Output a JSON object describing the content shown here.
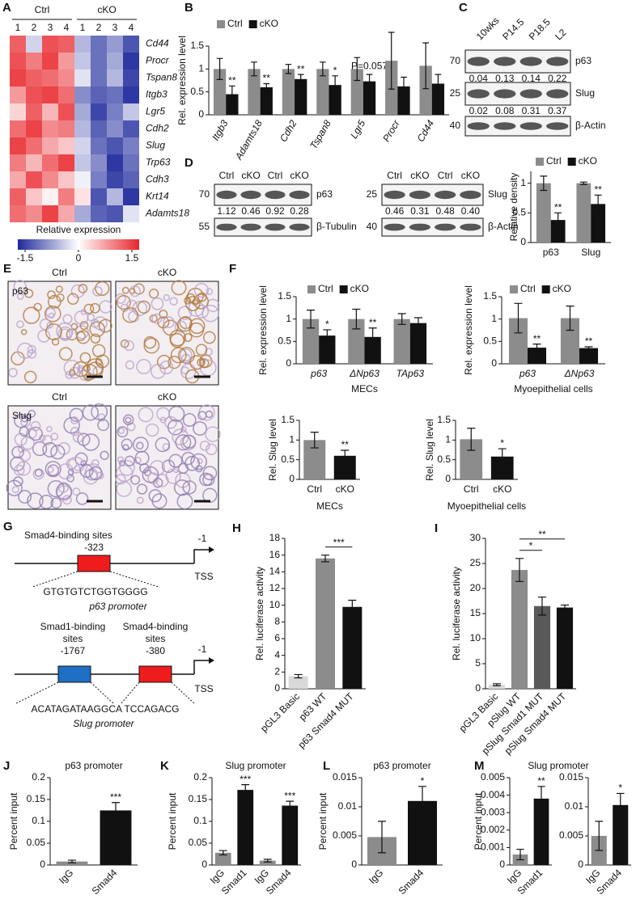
{
  "chart_data": [
    {
      "type": "heatmap",
      "letter": "A",
      "column_groups": [
        {
          "name": "Ctrl",
          "columns": [
            "1",
            "2",
            "3",
            "4"
          ]
        },
        {
          "name": "cKO",
          "columns": [
            "1",
            "2",
            "3",
            "4"
          ]
        }
      ],
      "rows": [
        "Cd44",
        "Procr",
        "Tspan8",
        "Itgb3",
        "Lgr5",
        "Cdh2",
        "Slug",
        "Trp63",
        "Cdh3",
        "Krt14",
        "Adamts18"
      ],
      "row_label_colors": [
        "#111111",
        "#111111",
        "#111111",
        "#111111",
        "#111111",
        "#111111",
        "#d32f2f",
        "#d32f2f",
        "#111111",
        "#111111",
        "#111111"
      ],
      "values": [
        [
          1.1,
          -0.3,
          1.2,
          1.1,
          -0.5,
          -1.0,
          -0.7,
          -1.2
        ],
        [
          1.2,
          0.9,
          1.3,
          0.7,
          -0.4,
          -1.0,
          -0.6,
          -1.4
        ],
        [
          1.3,
          1.1,
          1.0,
          0.8,
          -0.2,
          -1.0,
          -0.5,
          -1.3
        ],
        [
          0.7,
          1.2,
          1.3,
          1.0,
          -0.8,
          -1.1,
          -1.0,
          -1.4
        ],
        [
          0.3,
          1.1,
          0.5,
          1.2,
          -0.6,
          -1.3,
          -0.9,
          -0.4
        ],
        [
          1.0,
          1.3,
          0.8,
          0.9,
          -0.5,
          -1.1,
          -0.8,
          -1.2
        ],
        [
          1.3,
          1.0,
          0.6,
          0.4,
          -0.3,
          -1.0,
          -1.2,
          -0.9
        ],
        [
          0.9,
          0.5,
          1.0,
          1.3,
          -0.4,
          -0.8,
          -1.4,
          -1.0
        ],
        [
          0.6,
          1.2,
          0.8,
          0.4,
          -0.1,
          -0.9,
          -1.3,
          -1.1
        ],
        [
          1.1,
          0.4,
          0.1,
          0.9,
          0.2,
          -1.2,
          -0.5,
          -1.4
        ],
        [
          1.0,
          0.8,
          1.3,
          0.6,
          -0.6,
          -1.1,
          -1.2,
          -0.2
        ]
      ],
      "colorbar": {
        "label": "Relative expression",
        "lim": [
          -1.5,
          1.5
        ],
        "ticks": [
          -1.5,
          0,
          1.5
        ],
        "low_color": "#1f2a9c",
        "mid_color": "#ffffff",
        "high_color": "#e8262b"
      }
    },
    {
      "type": "bar",
      "letter": "B",
      "ylabel": "Rel. expression level",
      "categories": [
        "Itgb3",
        "Adamts18",
        "Cdh2",
        "Tspan8",
        "Lgr5",
        "Procr",
        "Cd44"
      ],
      "italic_categories": true,
      "category_label_rotation": -60,
      "series": [
        {
          "name": "Ctrl",
          "color": "#8c8c8c",
          "values": [
            1.0,
            1.0,
            1.0,
            1.0,
            1.0,
            1.18,
            1.07
          ],
          "errors": [
            0.23,
            0.15,
            0.1,
            0.15,
            0.25,
            0.62,
            0.5
          ]
        },
        {
          "name": "cKO",
          "color": "#111111",
          "values": [
            0.45,
            0.6,
            0.78,
            0.65,
            0.73,
            0.62,
            0.68
          ],
          "errors": [
            0.18,
            0.08,
            0.1,
            0.2,
            0.15,
            0.2,
            0.2
          ],
          "annotations": [
            "**",
            "**",
            "**",
            "*",
            "P=0.057",
            null,
            null
          ]
        }
      ],
      "ylim": [
        0,
        1.5
      ],
      "yticks": [
        0,
        0.5,
        1,
        1.5
      ]
    },
    {
      "type": "bar",
      "ylabel": "Relative density",
      "categories": [
        "p63",
        "Slug"
      ],
      "series": [
        {
          "name": "Ctrl",
          "color": "#8c8c8c",
          "values": [
            1.0,
            1.0
          ],
          "errors": [
            0.12,
            0.02
          ]
        },
        {
          "name": "cKO",
          "color": "#111111",
          "values": [
            0.38,
            0.65
          ],
          "errors": [
            0.12,
            0.15
          ],
          "annotations": [
            "**",
            "**"
          ]
        }
      ],
      "ylim": [
        0,
        1.2
      ],
      "yticks": [
        0,
        0.5,
        1
      ]
    },
    {
      "type": "bar",
      "letter": "F",
      "ylabel": "Rel. expression level",
      "xlabel": "MECs",
      "categories": [
        "p63",
        "ΔNp63",
        "TAp63"
      ],
      "italic_categories": true,
      "series": [
        {
          "name": "Ctrl",
          "color": "#8c8c8c",
          "values": [
            1.0,
            1.0,
            1.0
          ],
          "errors": [
            0.2,
            0.22,
            0.12
          ]
        },
        {
          "name": "cKO",
          "color": "#111111",
          "values": [
            0.63,
            0.6,
            0.91
          ],
          "errors": [
            0.13,
            0.2,
            0.12
          ],
          "annotations": [
            "*",
            "**",
            null
          ]
        }
      ],
      "ylim": [
        0,
        1.5
      ],
      "yticks": [
        0,
        0.5,
        1,
        1.5
      ]
    },
    {
      "type": "bar",
      "ylabel": "Rel. expression level",
      "xlabel": "Myoepithelial cells",
      "categories": [
        "p63",
        "ΔNp63"
      ],
      "italic_categories": true,
      "series": [
        {
          "name": "Ctrl",
          "color": "#8c8c8c",
          "values": [
            1.02,
            1.02
          ],
          "errors": [
            0.33,
            0.27
          ]
        },
        {
          "name": "cKO",
          "color": "#111111",
          "values": [
            0.36,
            0.35
          ],
          "errors": [
            0.08,
            0.03
          ],
          "annotations": [
            "**",
            "**"
          ]
        }
      ],
      "ylim": [
        0,
        1.5
      ],
      "yticks": [
        0,
        0.5,
        1,
        1.5
      ]
    },
    {
      "type": "bar",
      "ylabel": "Rel. Slug level",
      "xlabel": "MECs",
      "categories": [
        "Ctrl",
        "cKO"
      ],
      "values": [
        1.0,
        0.6
      ],
      "errors": [
        0.2,
        0.14
      ],
      "colors": [
        "#8c8c8c",
        "#111111"
      ],
      "annotations": [
        null,
        "**"
      ],
      "ylim": [
        0,
        1.5
      ],
      "yticks": [
        0,
        0.5,
        1,
        1.5
      ]
    },
    {
      "type": "bar",
      "ylabel": "Rel. Slug level",
      "xlabel": "Myoepithelial cells",
      "categories": [
        "Ctrl",
        "cKO"
      ],
      "values": [
        1.02,
        0.58
      ],
      "errors": [
        0.28,
        0.2
      ],
      "colors": [
        "#8c8c8c",
        "#111111"
      ],
      "annotations": [
        null,
        "*"
      ],
      "ylim": [
        0,
        1.5
      ],
      "yticks": [
        0,
        0.5,
        1,
        1.5
      ]
    },
    {
      "type": "bar",
      "letter": "H",
      "ylabel": "Rel. luciferase activity",
      "categories": [
        "pGL3 Basic",
        "p63 WT",
        "p63 Smad4 MUT"
      ],
      "category_label_rotation": -45,
      "values": [
        1.5,
        15.6,
        9.8
      ],
      "errors": [
        0.2,
        0.4,
        0.8
      ],
      "colors": [
        "#d9d9d9",
        "#8c8c8c",
        "#111111"
      ],
      "brackets": [
        {
          "text": "***",
          "from": "p63 WT",
          "to": "p63 Smad4 MUT"
        }
      ],
      "ylim": [
        0,
        18
      ],
      "yticks": [
        0,
        2,
        4,
        6,
        8,
        10,
        12,
        14,
        16,
        18
      ]
    },
    {
      "type": "bar",
      "letter": "I",
      "ylabel": "Rel. luciferase activity",
      "categories": [
        "pGL3 Basic",
        "pSlug WT",
        "pSlug Smad1 MUT",
        "pSlug Smad4 MUT"
      ],
      "category_label_rotation": -45,
      "values": [
        0.8,
        23.7,
        16.5,
        16.2
      ],
      "errors": [
        0.2,
        2.3,
        1.8,
        0.5
      ],
      "colors": [
        "#d9d9d9",
        "#8c8c8c",
        "#595959",
        "#111111"
      ],
      "brackets": [
        {
          "text": "*",
          "from": "pSlug WT",
          "to": "pSlug Smad1 MUT"
        },
        {
          "text": "**",
          "from": "pSlug WT",
          "to": "pSlug Smad4 MUT"
        }
      ],
      "ylim": [
        0,
        30
      ],
      "yticks": [
        0,
        5,
        10,
        15,
        20,
        25,
        30
      ]
    },
    {
      "type": "bar",
      "letter": "J",
      "title": "p63 promoter",
      "ylabel": "Percent input",
      "categories": [
        "IgG",
        "Smad4"
      ],
      "category_label_rotation": -45,
      "values": [
        0.008,
        0.125
      ],
      "errors": [
        0.003,
        0.018
      ],
      "colors": [
        "#8c8c8c",
        "#111111"
      ],
      "annotations": [
        null,
        "***"
      ],
      "ylim": [
        0,
        0.2
      ],
      "yticks": [
        0,
        0.05,
        0.1,
        0.15,
        0.2
      ]
    },
    {
      "type": "bar",
      "letter": "K",
      "title": "Slug promoter",
      "ylabel": "Percent input",
      "categories": [
        "IgG",
        "Smad1",
        "IgG",
        "Smad4"
      ],
      "category_label_rotation": -45,
      "values": [
        0.028,
        0.172,
        0.01,
        0.136
      ],
      "errors": [
        0.005,
        0.012,
        0.003,
        0.01
      ],
      "colors": [
        "#8c8c8c",
        "#111111",
        "#8c8c8c",
        "#111111"
      ],
      "annotations": [
        null,
        "***",
        null,
        "***"
      ],
      "ylim": [
        0,
        0.2
      ],
      "yticks": [
        0,
        0.05,
        0.1,
        0.15,
        0.2
      ]
    },
    {
      "type": "bar",
      "letter": "L",
      "title": "p63 promoter",
      "ylabel": "Percent input",
      "categories": [
        "IgG",
        "Smad4"
      ],
      "category_label_rotation": -45,
      "values": [
        0.0048,
        0.011
      ],
      "errors": [
        0.0027,
        0.0025
      ],
      "colors": [
        "#8c8c8c",
        "#111111"
      ],
      "annotations": [
        null,
        "*"
      ],
      "ylim": [
        0,
        0.015
      ],
      "yticks": [
        0,
        0.005,
        0.01,
        0.015
      ]
    },
    {
      "type": "bar",
      "letter": "M",
      "title": "Slug promoter",
      "ylabel": "Percent input",
      "categories": [
        "IgG",
        "Smad1"
      ],
      "category_label_rotation": -45,
      "values": [
        0.0006,
        0.0038
      ],
      "errors": [
        0.0003,
        0.0007
      ],
      "colors": [
        "#8c8c8c",
        "#111111"
      ],
      "annotations": [
        null,
        "**"
      ],
      "ylim": [
        0,
        0.005
      ],
      "yticks": [
        0,
        0.001,
        0.002,
        0.003,
        0.004,
        0.005
      ]
    },
    {
      "type": "bar",
      "categories": [
        "IgG",
        "Smad4"
      ],
      "category_label_rotation": -45,
      "values": [
        0.005,
        0.0103
      ],
      "errors": [
        0.0025,
        0.002
      ],
      "colors": [
        "#8c8c8c",
        "#111111"
      ],
      "annotations": [
        null,
        "*"
      ],
      "ylim": [
        0,
        0.015
      ],
      "yticks": [
        0,
        0.005,
        0.01,
        0.015
      ]
    }
  ],
  "blots": [
    {
      "letter": "C",
      "lanes": [
        "10wks",
        "P14.5",
        "P18.5",
        "L2"
      ],
      "rows": [
        {
          "protein": "p63",
          "marker": "70",
          "quant": [
            "0.04",
            "0.13",
            "0.14",
            "0.22"
          ]
        },
        {
          "protein": "Slug",
          "marker": "25",
          "quant": [
            "0.02",
            "0.08",
            "0.31",
            "0.37"
          ]
        },
        {
          "protein": "β-Actin",
          "marker": "40"
        }
      ]
    },
    {
      "letter": "D",
      "lanes": [
        "Ctrl",
        "cKO",
        "Ctrl",
        "cKO"
      ],
      "rows": [
        {
          "protein": "p63",
          "marker": "70",
          "quant": [
            "1.12",
            "0.46",
            "0.92",
            "0.28"
          ]
        },
        {
          "protein": "β-Tubulin",
          "marker": "55"
        }
      ]
    },
    {
      "lanes": [
        "Ctrl",
        "cKO",
        "Ctrl",
        "cKO"
      ],
      "rows": [
        {
          "protein": "Slug",
          "marker": "25",
          "quant": [
            "0.46",
            "0.31",
            "0.48",
            "0.40"
          ]
        },
        {
          "protein": "β-Actin",
          "marker": "40"
        }
      ]
    }
  ],
  "histology": {
    "letter": "E",
    "panels": [
      {
        "title": "Ctrl",
        "stain": "p63"
      },
      {
        "title": "cKO"
      },
      {
        "title": "Ctrl",
        "stain": "Slug"
      },
      {
        "title": "cKO"
      }
    ]
  },
  "promoter_diagram": {
    "letter": "G",
    "p63": {
      "site_label": "Smad4-binding sites",
      "site_position": "-323",
      "tss_position": "-1",
      "tss": "TSS",
      "sequence": "GTGTGTCTGGTGGGG",
      "name": "p63 promoter"
    },
    "slug": {
      "site1_label": [
        "Smad1-binding",
        "sites"
      ],
      "site1_position": "-1767",
      "site2_label": [
        "Smad4-binding",
        "sites"
      ],
      "site2_position": "-380",
      "tss_position": "-1",
      "tss": "TSS",
      "sequence": "ACATAGATAAGGCA TCCAGACG",
      "name": "Slug promoter"
    }
  }
}
